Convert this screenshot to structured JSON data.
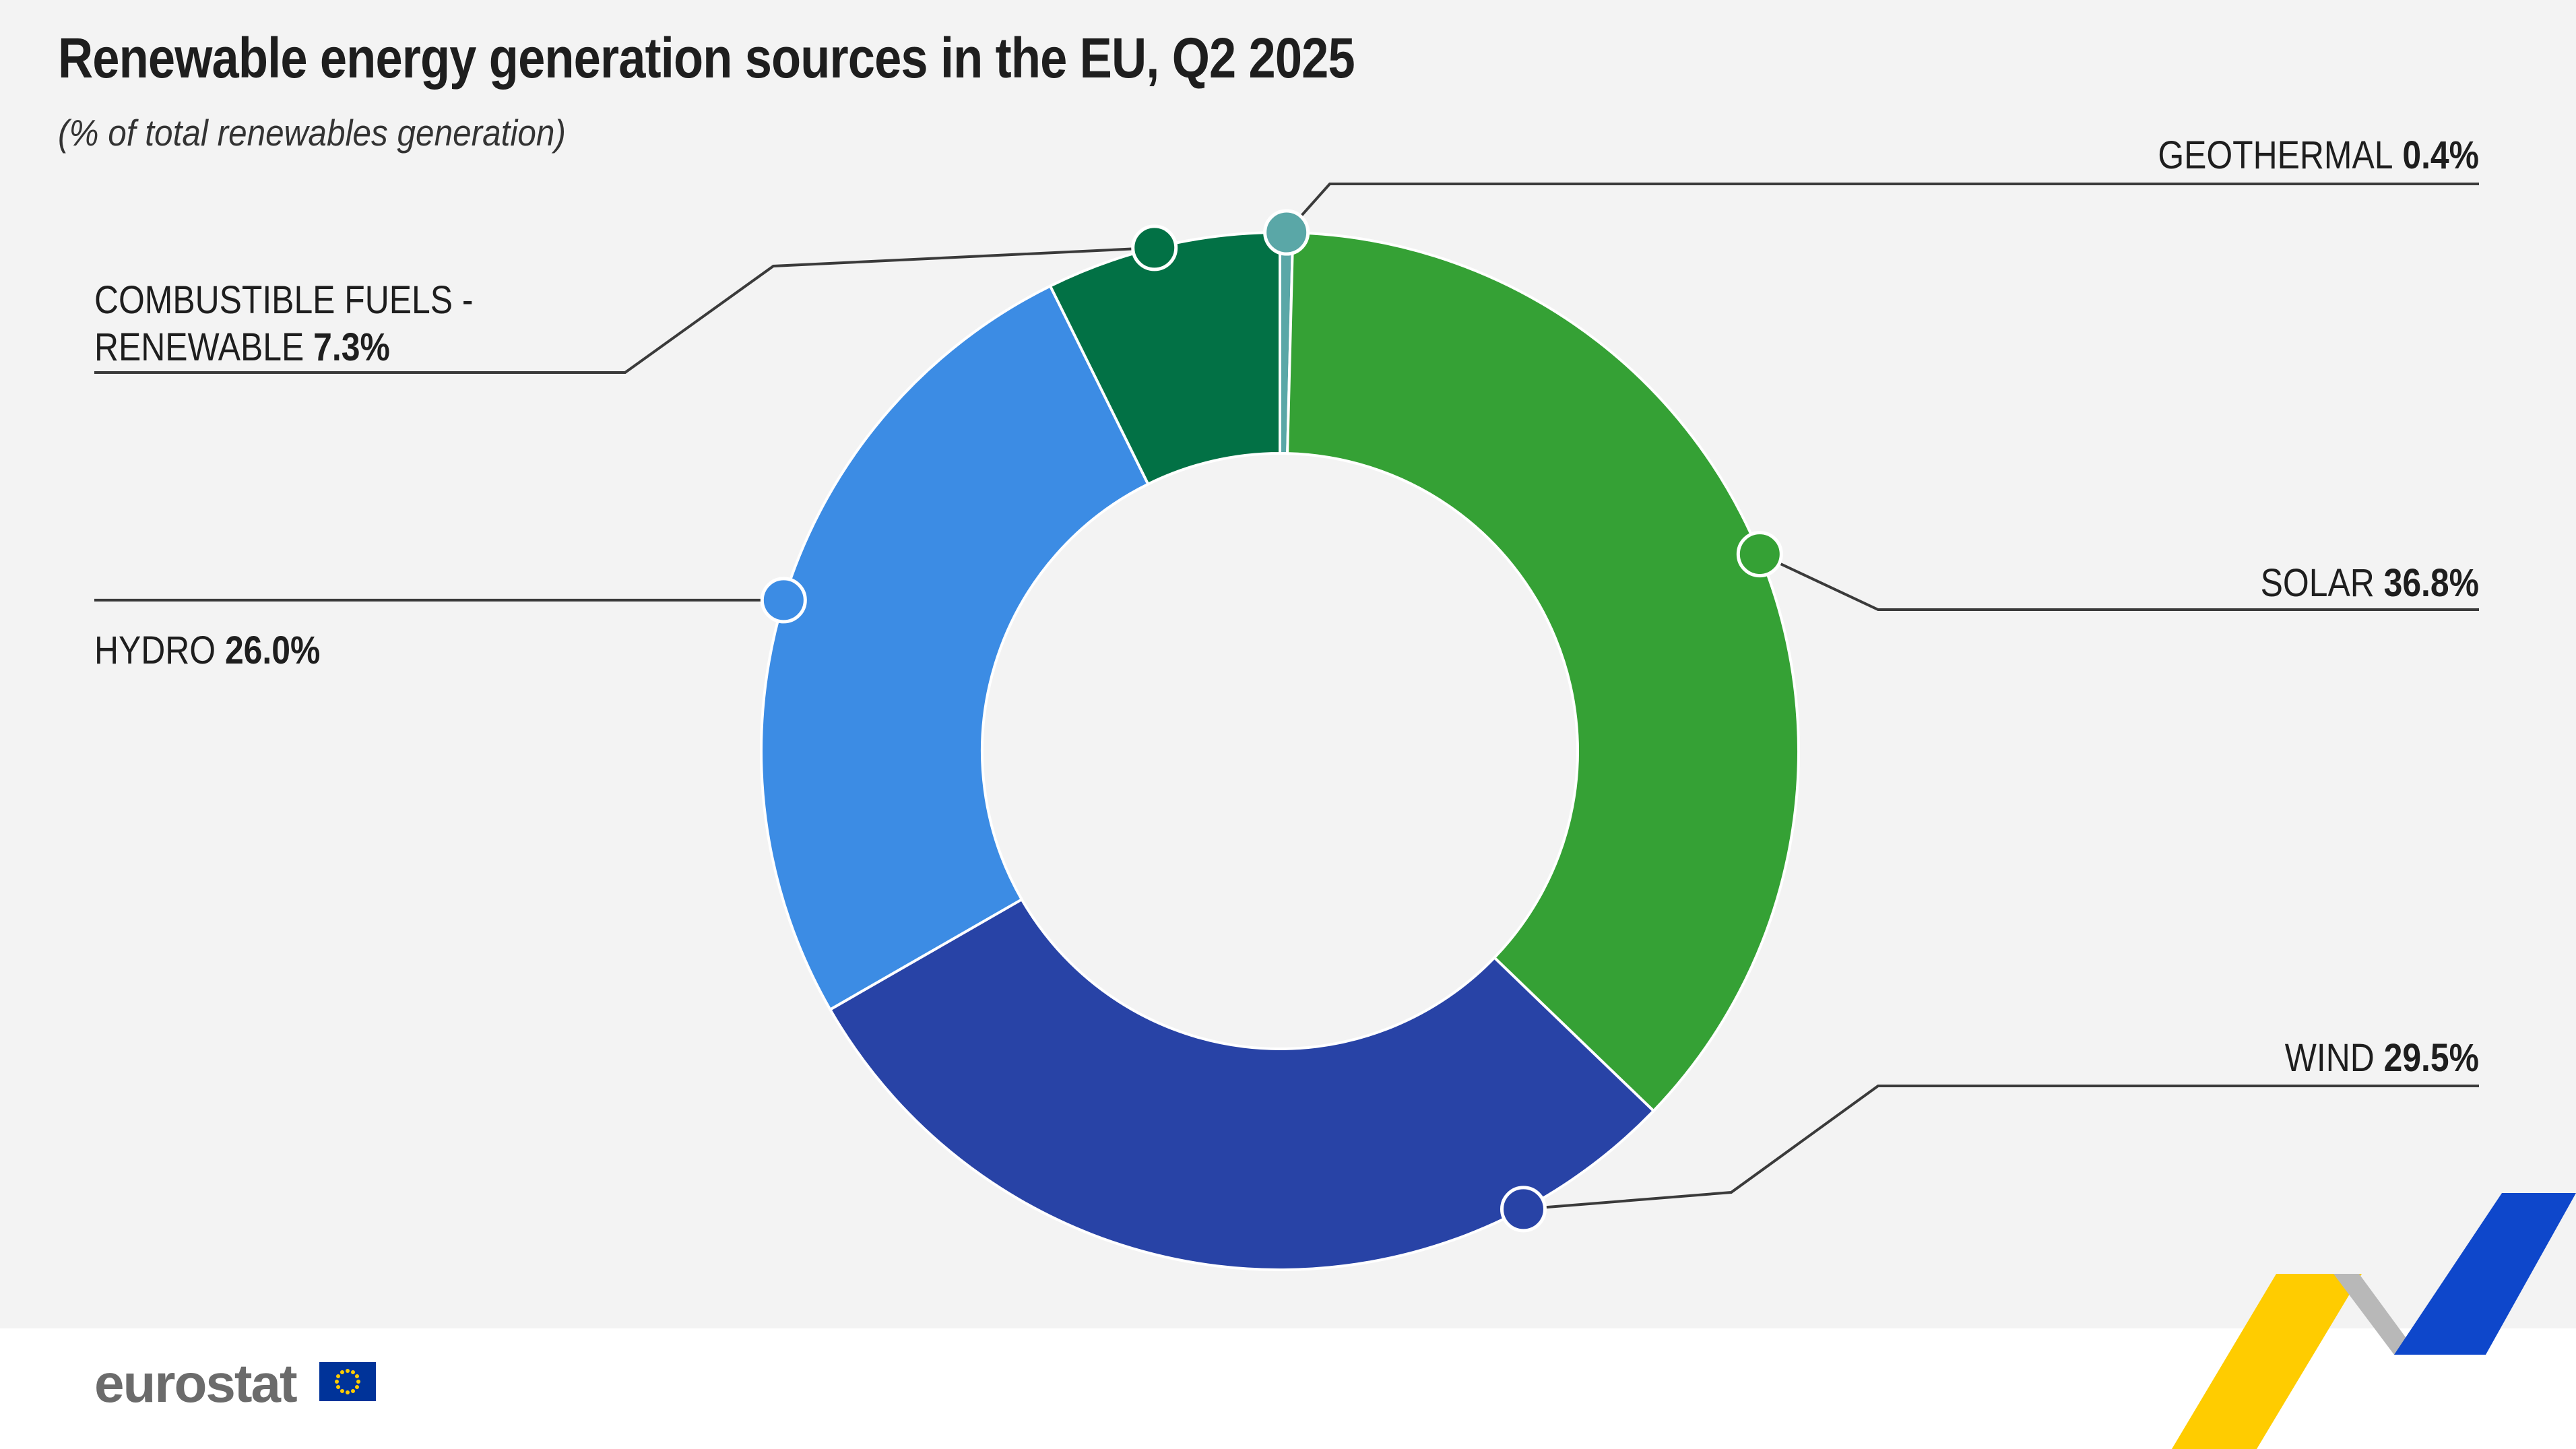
{
  "header": {
    "title": "Renewable energy generation sources in the EU, Q2 2025",
    "subtitle": "(% of total renewables generation)"
  },
  "footer": {
    "logo_text": "eurostat"
  },
  "chart_data": {
    "type": "pie",
    "donut": true,
    "title": "Renewable energy generation sources in the EU, Q2 2025",
    "subtitle": "(% of total renewables generation)",
    "unit": "%",
    "slices": [
      {
        "label": "GEOTHERMAL",
        "value": 0.4,
        "value_label": "0.4%",
        "color": "#5aa7a7"
      },
      {
        "label": "SOLAR",
        "value": 36.8,
        "value_label": "36.8%",
        "color": "#35a135"
      },
      {
        "label": "WIND",
        "value": 29.5,
        "value_label": "29.5%",
        "color": "#2843a6"
      },
      {
        "label": "HYDRO",
        "value": 26.0,
        "value_label": "26.0%",
        "color": "#3c8ce4"
      },
      {
        "label": "COMBUSTIBLE FUELS - RENEWABLE",
        "label_lines": [
          "COMBUSTIBLE FUELS -",
          "RENEWABLE"
        ],
        "value": 7.3,
        "value_label": "7.3%",
        "color": "#027145"
      }
    ]
  },
  "colors": {
    "background": "#f3f3f3",
    "footer": "#ffffff",
    "leader_line": "#3a3a3a",
    "eu_flag": "#003399",
    "eu_stars": "#ffcc00",
    "accent_yellow": "#ffcc00",
    "accent_grey": "#b8b8b8",
    "accent_blue": "#0e47cb"
  }
}
